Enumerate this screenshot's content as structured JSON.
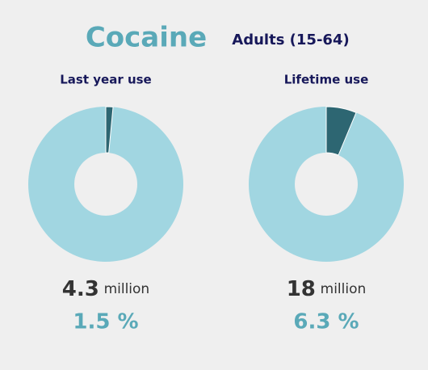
{
  "title": "Cocaine",
  "subtitle": "Adults (15-64)",
  "chart_data": [
    {
      "type": "donut",
      "title": "Last year use",
      "values": [
        1.5
      ],
      "value_labels": [
        "1.5 %"
      ],
      "color": "#2d6672",
      "track_color": "#a1d6e1",
      "count": 4.3,
      "count_unit": "million"
    },
    {
      "type": "donut",
      "title": "Lifetime use",
      "values": [
        6.3
      ],
      "value_labels": [
        "6.3 %"
      ],
      "color": "#2d6672",
      "track_color": "#a1d6e1",
      "count": 18,
      "count_unit": "million"
    }
  ]
}
